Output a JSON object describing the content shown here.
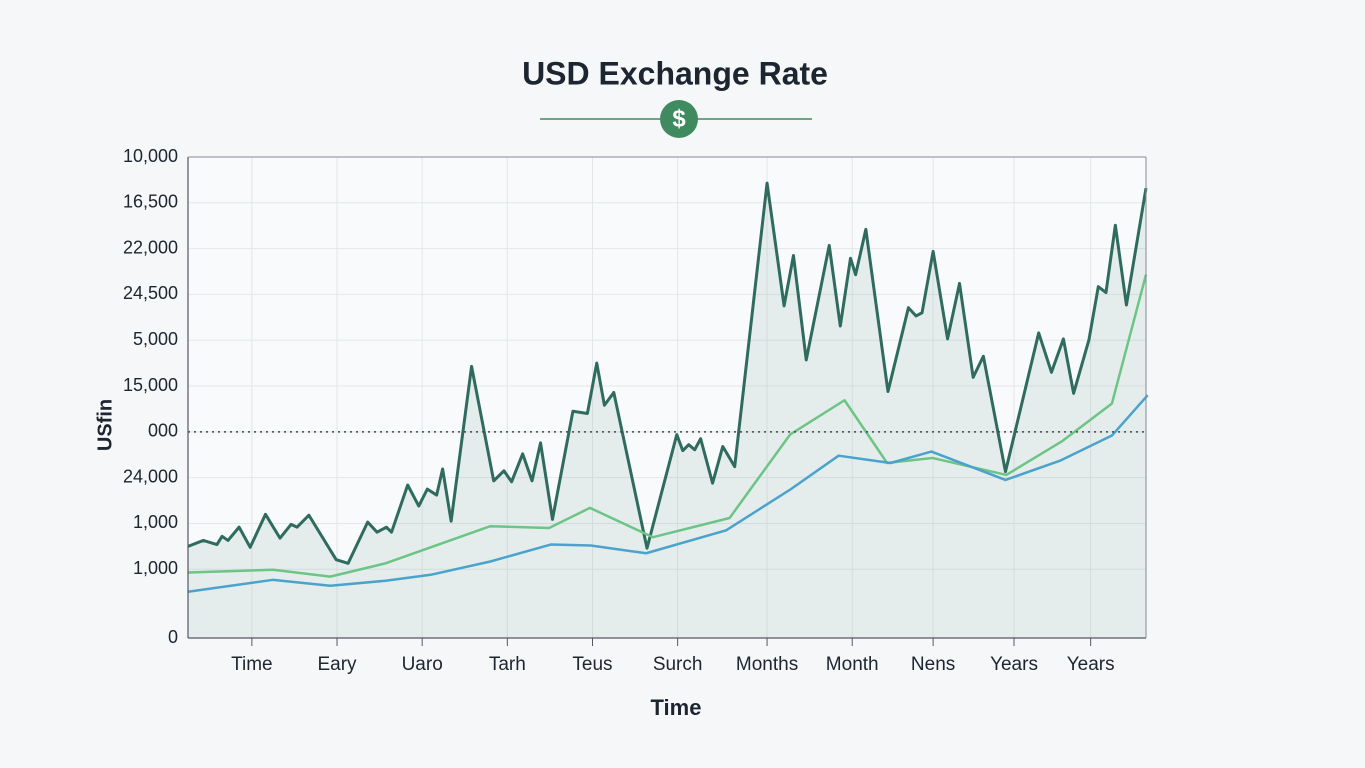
{
  "chart_data": {
    "type": "line",
    "title": "USD Exchange Rate",
    "icon_text": "$",
    "x_label": "Time",
    "y_label": "USfin",
    "xlim": [
      0,
      11.25
    ],
    "xticks": [
      {
        "value": 0.75,
        "label": "Time"
      },
      {
        "value": 1.75,
        "label": "Eary"
      },
      {
        "value": 2.75,
        "label": "Uaro"
      },
      {
        "value": 3.75,
        "label": "Tarh"
      },
      {
        "value": 4.75,
        "label": "Teus"
      },
      {
        "value": 5.75,
        "label": "Surch"
      },
      {
        "value": 6.8,
        "label": "Months"
      },
      {
        "value": 7.8,
        "label": "Month"
      },
      {
        "value": 8.75,
        "label": "Nens"
      },
      {
        "value": 9.7,
        "label": "Years"
      },
      {
        "value": 10.6,
        "label": "Years"
      }
    ],
    "ylim": [
      0,
      10.5
    ],
    "yticks": [
      0,
      {
        "value": 1.5,
        "label": "1,000"
      },
      {
        "value": 2.5,
        "label": "1,000"
      },
      {
        "value": 3.5,
        "label": "24,000"
      },
      {
        "value": 4.5,
        "label": "000"
      },
      {
        "value": 5.5,
        "label": "15,000"
      },
      {
        "value": 6.5,
        "label": "5,000"
      },
      {
        "value": 7.5,
        "label": "24,500"
      },
      {
        "value": 8.5,
        "label": "22,000"
      },
      {
        "value": 9.5,
        "label": "16,500"
      },
      {
        "value": 10.5,
        "label": "10,000"
      }
    ],
    "grid": true,
    "reference_line": 4.5,
    "series": [
      {
        "color": "#2f6b5e",
        "area": true,
        "x": [
          0,
          0.18,
          0.34,
          0.4,
          0.47,
          0.6,
          0.73,
          0.91,
          1.08,
          1.21,
          1.28,
          1.42,
          1.74,
          1.88,
          2.11,
          2.22,
          2.33,
          2.39,
          2.58,
          2.71,
          2.81,
          2.92,
          2.99,
          3.09,
          3.33,
          3.59,
          3.71,
          3.8,
          3.93,
          4.04,
          4.14,
          4.28,
          4.52,
          4.69,
          4.8,
          4.89,
          5.0,
          5.39,
          5.74,
          5.81,
          5.88,
          5.95,
          6.02,
          6.16,
          6.28,
          6.42,
          6.8,
          7.0,
          7.11,
          7.26,
          7.53,
          7.66,
          7.78,
          7.84,
          7.96,
          8.22,
          8.46,
          8.55,
          8.62,
          8.75,
          8.92,
          9.06,
          9.22,
          9.34,
          9.6,
          9.99,
          10.14,
          10.28,
          10.4,
          10.58,
          10.69,
          10.78,
          10.89,
          11.02,
          11.25
        ],
        "values": [
          2.0,
          2.13,
          2.04,
          2.22,
          2.13,
          2.42,
          1.98,
          2.7,
          2.18,
          2.48,
          2.42,
          2.68,
          1.71,
          1.63,
          2.53,
          2.31,
          2.42,
          2.31,
          3.34,
          2.88,
          3.25,
          3.12,
          3.69,
          2.55,
          5.93,
          3.43,
          3.65,
          3.41,
          4.02,
          3.43,
          4.26,
          2.59,
          4.95,
          4.9,
          6.0,
          5.08,
          5.36,
          1.96,
          4.44,
          4.09,
          4.22,
          4.11,
          4.35,
          3.38,
          4.18,
          3.74,
          9.93,
          7.25,
          8.35,
          6.07,
          8.57,
          6.81,
          8.29,
          7.93,
          8.92,
          5.38,
          7.21,
          7.03,
          7.1,
          8.44,
          6.53,
          7.74,
          5.69,
          6.15,
          3.63,
          6.66,
          5.8,
          6.53,
          5.34,
          6.51,
          7.67,
          7.54,
          9.01,
          7.27,
          9.82
        ]
      },
      {
        "color": "#6cc485",
        "x": [
          0,
          1.0,
          1.67,
          2.32,
          3.55,
          4.24,
          4.72,
          5.46,
          6.36,
          7.07,
          7.71,
          8.21,
          8.74,
          9.61,
          10.26,
          10.85,
          11.25
        ],
        "values": [
          1.43,
          1.49,
          1.34,
          1.63,
          2.44,
          2.4,
          2.84,
          2.2,
          2.62,
          4.44,
          5.19,
          3.82,
          3.93,
          3.56,
          4.29,
          5.12,
          7.93
        ]
      },
      {
        "color": "#4aa3cc",
        "x": [
          0,
          1.0,
          1.67,
          2.32,
          2.85,
          3.55,
          4.26,
          4.73,
          5.38,
          6.32,
          7.08,
          7.64,
          8.25,
          8.73,
          9.6,
          10.24,
          10.85,
          11.27
        ],
        "values": [
          1.01,
          1.27,
          1.14,
          1.25,
          1.38,
          1.67,
          2.04,
          2.02,
          1.85,
          2.35,
          3.25,
          3.98,
          3.82,
          4.07,
          3.45,
          3.87,
          4.42,
          5.3
        ]
      }
    ]
  }
}
